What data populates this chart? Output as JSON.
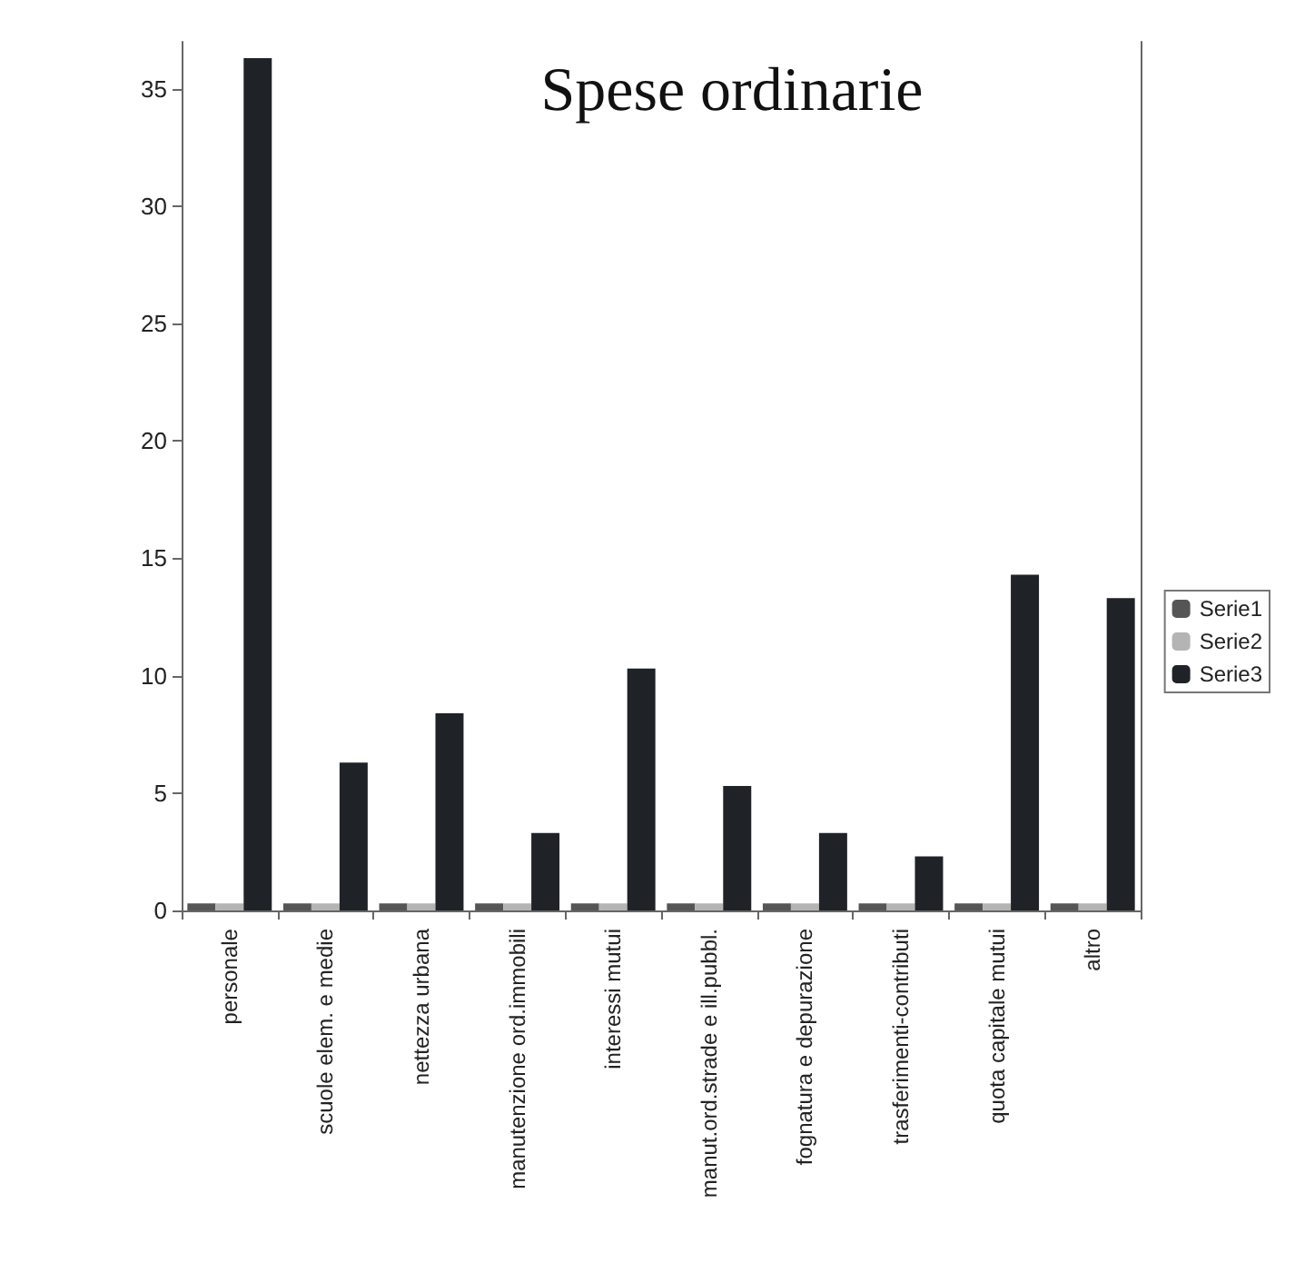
{
  "chart_data": {
    "type": "bar",
    "title": "Spese ordinarie",
    "categories": [
      "personale",
      "scuole elem. e medie",
      "nettezza urbana",
      "manutenzione ord.immobili",
      "interessi mutui",
      "manut.ord.strade e ill.pubbl.",
      "fognatura e depurazione",
      "trasferimenti-contributi",
      "quota capitale mutui",
      "altro"
    ],
    "series": [
      {
        "name": "Serie1",
        "color": "#555555",
        "values": [
          0.3,
          0.3,
          0.3,
          0.3,
          0.3,
          0.3,
          0.3,
          0.3,
          0.3,
          0.3
        ]
      },
      {
        "name": "Serie2",
        "color": "#b4b4b4",
        "values": [
          0.3,
          0.3,
          0.3,
          0.3,
          0.3,
          0.3,
          0.3,
          0.3,
          0.3,
          0.3
        ]
      },
      {
        "name": "Serie3",
        "color": "#1f2327",
        "values": [
          36.3,
          6.3,
          8.4,
          3.3,
          10.3,
          5.3,
          3.3,
          2.3,
          14.3,
          13.3
        ]
      }
    ],
    "ylim": [
      0,
      37
    ],
    "yticks": [
      0,
      5,
      10,
      15,
      20,
      25,
      30,
      35
    ],
    "grid": false,
    "legend": "right"
  }
}
